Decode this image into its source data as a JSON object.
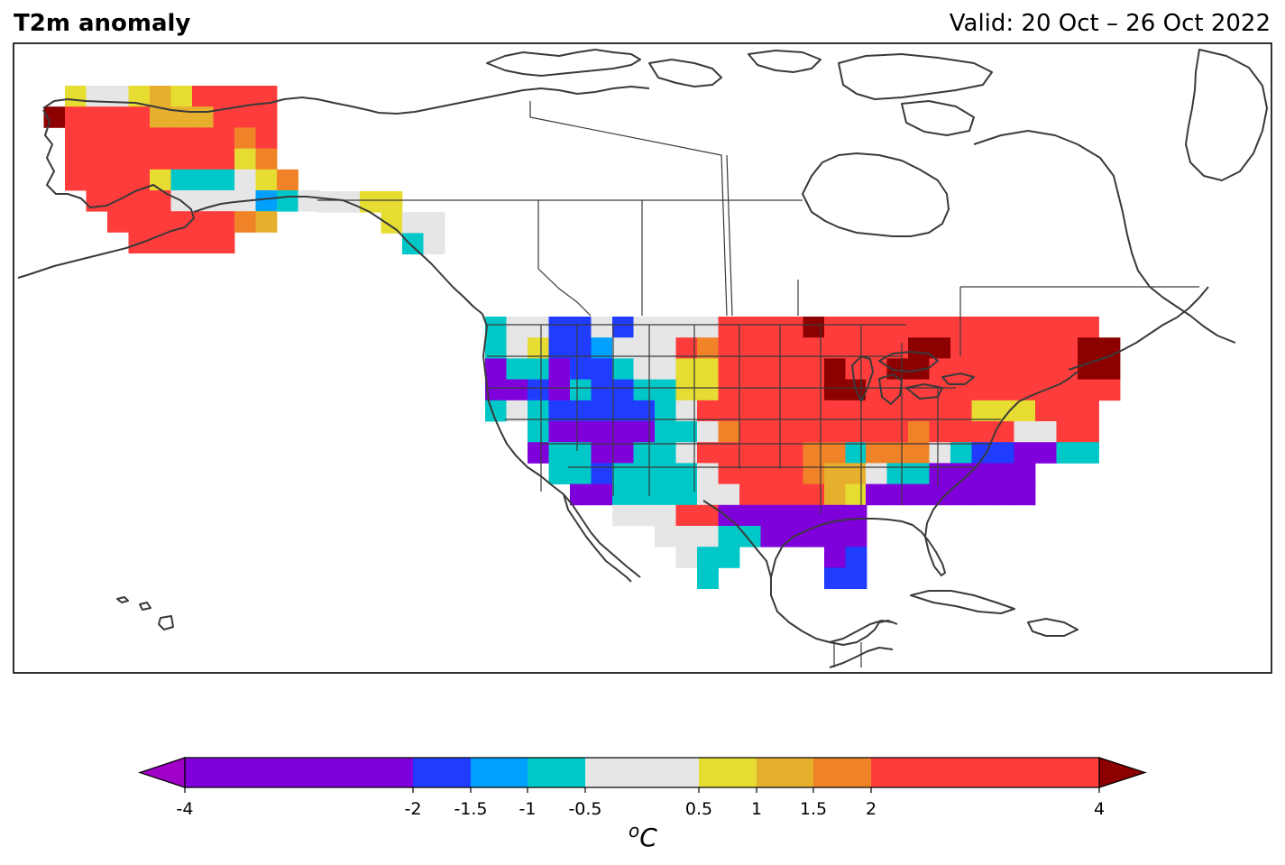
{
  "title": "T2m anomaly",
  "valid": "Valid: 20 Oct – 26 Oct 2022",
  "colorbar": {
    "unit_sup": "o",
    "unit": "C",
    "bounds": [
      -4,
      -2,
      -1.5,
      -1,
      -0.5,
      0.5,
      1,
      1.5,
      2,
      4
    ],
    "tick_labels": [
      "-4",
      "-2",
      "-1.5",
      "-1",
      "-0.5",
      "0.5",
      "1",
      "1.5",
      "2",
      "4"
    ],
    "colors": [
      "#8000db",
      "#203cff",
      "#00a0ff",
      "#00c8c8",
      "#e6e6e6",
      "#e6dc32",
      "#e6af2d",
      "#f08228",
      "#ff3c3c"
    ],
    "extend_low_color": "#a000c8",
    "extend_high_color": "#8c0000"
  },
  "chart_data": {
    "type": "heatmap",
    "title": "T2m anomaly",
    "subtitle": "Valid: 20 Oct – 26 Oct 2022",
    "colorbar_label": "oC",
    "legend": "colorbar-bottom",
    "categories_legend": [
      "< -4 (extend)",
      "-4 to -2",
      "-2 to -1.5",
      "-1.5 to -1",
      "-1 to -0.5",
      "-0.5 to 0.5",
      "0.5 to 1",
      "1 to 1.5",
      "1.5 to 2",
      "2 to 4",
      "> 4 (extend)"
    ],
    "regions": [
      {
        "name": "Alaska",
        "rows": [
          "..YGGYOYRRRR..",
          ".XRRRROOORRR..",
          "..RRRRRRRRTR..",
          "..RRRRRRRRYT..",
          "..RRRRYCCCGYT.",
          "...RRRRGGGGAQG",
          "....RRRRRRTD..",
          ".....RRRRR...."
        ]
      },
      {
        "name": "Canada",
        "rows": [
          "GGYY..",
          "...YGG",
          "....QG"
        ]
      },
      {
        "name": "Western US",
        "rows": [
          "QGGBBGBGGGGRRRRXRR",
          "QGYBBAGGGRTRRRRRRR",
          "PQCPBBQGGYYRRRRRXR",
          "PPBPCBBQQYYRRRRRXX",
          "QGCBBBBBQGRRRRRRRR",
          "..QPPPPPQQGTRRRRRR",
          "..PQQPPQQGRRRRRTTQ",
          "...QQBQQQQGRRRRTDD",
          "....PPQQQQGGRRRRDY",
          "......GGGRRPPPPPPP",
          "........GGGQQPPPPP",
          ".........GQQ....PB",
          "..........Q.....BB"
        ]
      },
      {
        "name": "Eastern US",
        "rows": [
          "RRRRRRRRRRR..",
          "RRXXRRRRRRXX.",
          "RXXRRRRRRRXX.",
          "RRRRRRRRRRRR.",
          "RRRRRYYYRRR..",
          "RRTRRRRGGRR..",
          "TTTGQBBPPQQ..",
          "GQQPPPPP.....",
          "PPPPPPPP....."
        ]
      }
    ],
    "cell_code_legend": {
      "P": "-4 to -2",
      "B": "-2 to -1.5",
      "A": "-1.5 to -1",
      "Q": "-1 to -0.5",
      "C": "-1 to -0.5",
      "G": "-0.5 to 0.5",
      "Y": "0.5 to 1",
      "D": "1 to 1.5",
      "T": "1.5 to 2",
      "O": "1 to 1.5",
      "R": "2 to 4",
      "X": "> 4"
    }
  }
}
